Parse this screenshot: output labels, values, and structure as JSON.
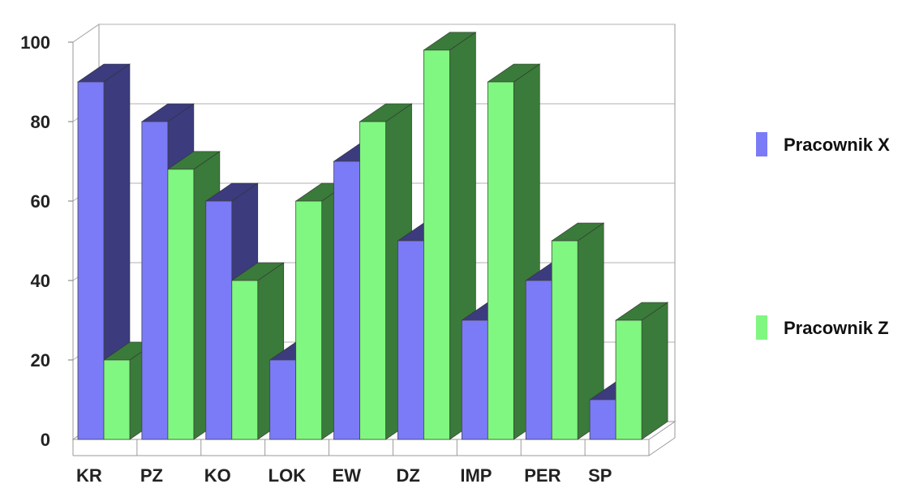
{
  "chart_data": {
    "type": "bar",
    "style": "3d-clustered-column",
    "categories": [
      "KR",
      "PZ",
      "KO",
      "LOK",
      "EW",
      "DZ",
      "IMP",
      "PER",
      "SP"
    ],
    "series": [
      {
        "name": "Pracownik X",
        "values": [
          90,
          80,
          60,
          20,
          70,
          50,
          30,
          40,
          10
        ],
        "color": "#7b7bf7",
        "side_color": "#3b3b7e",
        "top_color": "#3b3b7e"
      },
      {
        "name": "Pracownik Z",
        "values": [
          20,
          68,
          40,
          60,
          80,
          98,
          90,
          50,
          30
        ],
        "color": "#80f780",
        "side_color": "#3a7a3a",
        "top_color": "#3a7a3a"
      }
    ],
    "ylim": [
      0,
      100
    ],
    "yticks": [
      "0",
      "20",
      "40",
      "60",
      "80",
      "100"
    ],
    "grid": true,
    "legend_position": "right"
  }
}
